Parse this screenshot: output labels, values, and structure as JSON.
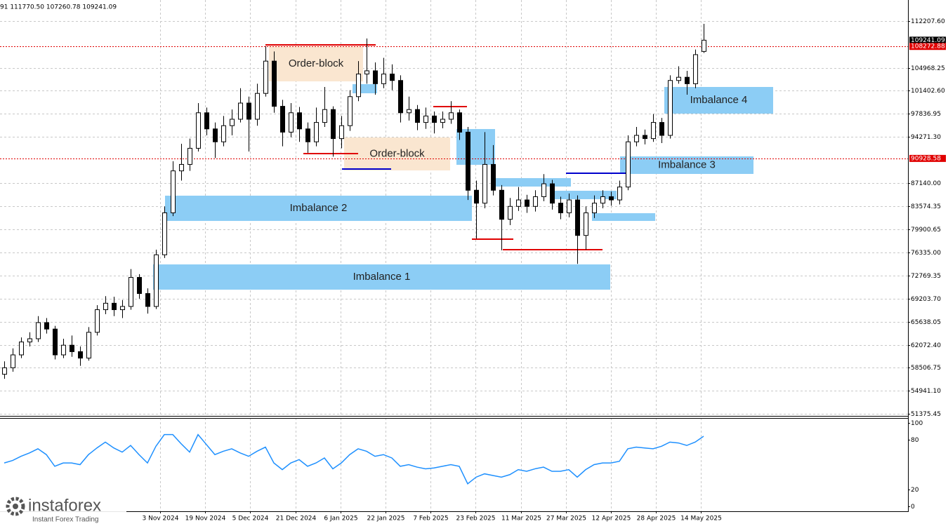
{
  "chart_data": {
    "type": "candlestick",
    "header": "91 111770.50 107260.78 109241.09",
    "ylim": [
      51050,
      115466
    ],
    "yticks": [
      {
        "value": 112207.6,
        "label": "112207.60"
      },
      104968.25,
      {
        "value": 101402.6,
        "label": "101402.60"
      },
      97836.95,
      {
        "value": 94271.3,
        "label": "94271.30"
      },
      {
        "value": 87140,
        "label": "87140.00"
      },
      83574.35,
      79900.65,
      {
        "value": 76335,
        "label": "76335.00"
      },
      72769.35,
      {
        "value": 69203.7,
        "label": "69203.70"
      },
      65638.05,
      {
        "value": 62072.4,
        "label": "62072.40"
      },
      58506.75,
      {
        "value": 54941.1,
        "label": "54941.10"
      },
      51375.45
    ],
    "xticks": [
      "3 Nov 2024",
      "19 Nov 2024",
      "5 Dec 2024",
      "21 Dec 2024",
      "6 Jan 2025",
      "22 Jan 2025",
      "7 Feb 2025",
      "23 Feb 2025",
      "11 Mar 2025",
      "27 Mar 2025",
      "12 Apr 2025",
      "28 Apr 2025",
      "14 May 2025"
    ],
    "grid": true,
    "candles": {
      "up_color": "#ffffff",
      "down_color": "#000000",
      "values": [
        [
          57500,
          59500,
          56800,
          58500
        ],
        [
          58500,
          61500,
          57900,
          60500
        ],
        [
          60500,
          63200,
          60000,
          62500
        ],
        [
          62500,
          64000,
          61800,
          63000
        ],
        [
          63000,
          66500,
          62500,
          65500
        ],
        [
          65500,
          66200,
          63800,
          64500
        ],
        [
          64500,
          65000,
          59800,
          60500
        ],
        [
          60500,
          63000,
          60000,
          62000
        ],
        [
          62000,
          63500,
          60200,
          61000
        ],
        [
          61000,
          61800,
          58800,
          60000
        ],
        [
          60000,
          64800,
          59600,
          64000
        ],
        [
          64000,
          68200,
          63500,
          67500
        ],
        [
          67500,
          69600,
          66800,
          68500
        ],
        [
          68500,
          69500,
          66500,
          67500
        ],
        [
          67500,
          69000,
          66200,
          68000
        ],
        [
          68000,
          73800,
          67500,
          72500
        ],
        [
          72500,
          73000,
          69200,
          70000
        ],
        [
          70000,
          70800,
          66900,
          68000
        ],
        [
          68000,
          76800,
          67600,
          76000
        ],
        [
          76000,
          83500,
          75500,
          82500
        ],
        [
          82500,
          90500,
          82000,
          89000
        ],
        [
          89000,
          93200,
          87500,
          90000
        ],
        [
          90000,
          94000,
          89000,
          92500
        ],
        [
          92500,
          99500,
          92000,
          98000
        ],
        [
          98000,
          98800,
          94500,
          95500
        ],
        [
          95500,
          96500,
          91000,
          93500
        ],
        [
          93500,
          97500,
          92800,
          96000
        ],
        [
          96000,
          98500,
          94500,
          97000
        ],
        [
          97000,
          101800,
          96500,
          99500
        ],
        [
          99500,
          100500,
          92000,
          97000
        ],
        [
          97000,
          102500,
          96000,
          101000
        ],
        [
          101000,
          108300,
          100500,
          106000
        ],
        [
          106000,
          107500,
          98000,
          99000
        ],
        [
          99000,
          100000,
          92800,
          95000
        ],
        [
          95000,
          99500,
          94200,
          98000
        ],
        [
          98000,
          98900,
          93500,
          95500
        ],
        [
          95500,
          96500,
          91800,
          93500
        ],
        [
          93500,
          98800,
          92800,
          96500
        ],
        [
          96500,
          102000,
          95800,
          98500
        ],
        [
          98500,
          99000,
          91200,
          94000
        ],
        [
          94000,
          97500,
          92500,
          96000
        ],
        [
          96000,
          101500,
          95200,
          100500
        ],
        [
          100500,
          106000,
          99800,
          104000
        ],
        [
          104000,
          109500,
          102500,
          104500
        ],
        [
          104500,
          105800,
          100800,
          102500
        ],
        [
          102500,
          106500,
          101800,
          104000
        ],
        [
          104000,
          105500,
          101500,
          103000
        ],
        [
          103000,
          103800,
          96500,
          98000
        ],
        [
          98000,
          100500,
          96800,
          98500
        ],
        [
          98500,
          99200,
          95300,
          96500
        ],
        [
          96500,
          98800,
          95500,
          97500
        ],
        [
          97500,
          98200,
          94800,
          96500
        ],
        [
          96500,
          98200,
          95600,
          97000
        ],
        [
          97000,
          99800,
          96300,
          98000
        ],
        [
          98000,
          98500,
          93800,
          95000
        ],
        [
          95000,
          95800,
          84500,
          86000
        ],
        [
          86000,
          87500,
          78500,
          84000
        ],
        [
          84000,
          95000,
          83200,
          90000
        ],
        [
          90000,
          93000,
          85200,
          86000
        ],
        [
          86000,
          86800,
          76700,
          81500
        ],
        [
          81500,
          84800,
          80600,
          83500
        ],
        [
          83500,
          86500,
          82800,
          84500
        ],
        [
          84500,
          85300,
          82500,
          83500
        ],
        [
          83500,
          86000,
          82700,
          85000
        ],
        [
          85000,
          88500,
          84300,
          87000
        ],
        [
          87000,
          87600,
          83000,
          84000
        ],
        [
          84000,
          85000,
          81500,
          82500
        ],
        [
          82500,
          85500,
          81800,
          84500
        ],
        [
          84500,
          85200,
          74600,
          79000
        ],
        [
          79000,
          83500,
          76800,
          82500
        ],
        [
          82500,
          85200,
          81700,
          84000
        ],
        [
          84000,
          86000,
          83200,
          85000
        ],
        [
          85000,
          85800,
          83600,
          84500
        ],
        [
          84500,
          87500,
          83800,
          86500
        ],
        [
          86500,
          94500,
          86000,
          93500
        ],
        [
          93500,
          95800,
          92800,
          94500
        ],
        [
          94500,
          95400,
          93100,
          94000
        ],
        [
          94000,
          97800,
          93500,
          96500
        ],
        [
          96500,
          97200,
          93300,
          94500
        ],
        [
          94500,
          103800,
          94000,
          103000
        ],
        [
          103000,
          105200,
          102500,
          103500
        ],
        [
          103500,
          104500,
          100800,
          102500
        ],
        [
          102500,
          107800,
          101800,
          107000
        ],
        [
          107500,
          111770.5,
          107260.78,
          109241.09
        ]
      ]
    },
    "zones": [
      {
        "label": "Order-block",
        "top": 108297,
        "bottom": 102865,
        "color": "#fae6d0"
      },
      {
        "label": "Order-block",
        "top": 94175,
        "bottom": 89070,
        "color": "#fae6d0"
      },
      {
        "label": "Imbalance 2",
        "top": 85158,
        "bottom": 81247,
        "color": "#8ccdf5"
      },
      {
        "label": "Imbalance 1",
        "top": 74512,
        "bottom": 70601,
        "color": "#8ccdf5"
      },
      {
        "label": "Imbalance 3",
        "top": 91242,
        "bottom": 88526,
        "color": "#8ccdf5"
      },
      {
        "label": "Imbalance 4",
        "top": 101997,
        "bottom": 97869,
        "color": "#8ccdf5"
      },
      {
        "top": 102431,
        "bottom": 101019,
        "color": "#8ccdf5"
      },
      {
        "top": 95479,
        "bottom": 89939,
        "color": "#8ccdf5"
      },
      {
        "top": 87874,
        "bottom": 86571,
        "color": "#8ccdf5"
      },
      {
        "top": 85919,
        "bottom": 84615,
        "color": "#8ccdf5"
      },
      {
        "top": 82443,
        "bottom": 81248,
        "color": "#8ccdf5"
      }
    ],
    "levels": [
      {
        "value": 108514,
        "color": "#e00000"
      },
      {
        "value": 91676,
        "color": "#e00000"
      },
      {
        "value": 89286,
        "color": "#0000cc"
      },
      {
        "value": 98955,
        "color": "#e00000"
      },
      {
        "value": 78423,
        "color": "#e00000"
      },
      {
        "value": 76794,
        "color": "#e00000"
      },
      {
        "value": 88635,
        "color": "#0000cc"
      }
    ],
    "price_lines": [
      {
        "value": 108272.88,
        "color": "#e00000"
      },
      {
        "value": 90928.58,
        "color": "#e00000"
      }
    ],
    "current_price": {
      "value": 109241.09,
      "color": "#000000"
    },
    "rsi": {
      "color": "#1e90ff",
      "ylim": [
        -5.9,
        105.9
      ],
      "yticks": [
        100,
        80,
        20,
        0
      ],
      "values": [
        52,
        55,
        60,
        64,
        69,
        62,
        48,
        52,
        52,
        50,
        62,
        70,
        77,
        70,
        65,
        73,
        62,
        52,
        72,
        86,
        86,
        75,
        65,
        86,
        74,
        62,
        66,
        69,
        64,
        60,
        66,
        71,
        52,
        44,
        52,
        56,
        48,
        52,
        58,
        45,
        52,
        62,
        69,
        66,
        60,
        62,
        58,
        48,
        50,
        47,
        45,
        46,
        48,
        50,
        48,
        27,
        35,
        39,
        37,
        35,
        38,
        44,
        42,
        45,
        47,
        42,
        42,
        44,
        35,
        44,
        50,
        52,
        52,
        54,
        69,
        71,
        70,
        69,
        72,
        77,
        76,
        73,
        77,
        84
      ]
    },
    "brand": {
      "name": "instaforex",
      "tagline": "Instant Forex Trading"
    }
  }
}
